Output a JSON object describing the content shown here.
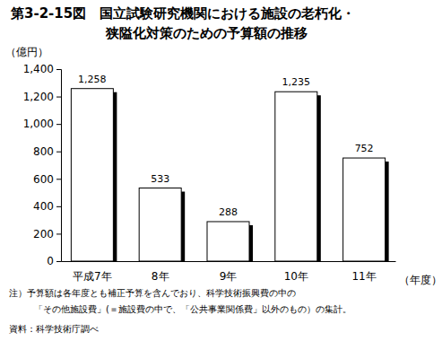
{
  "chart_data": {
    "type": "bar",
    "title": "第3-2-15図　国立試験研究機関における施設の老朽化・狭隘化対策のための予算額の推移",
    "ylabel": "（億円）",
    "xlabel": "（年度）",
    "categories": [
      "平成7年",
      "8年",
      "9年",
      "10年",
      "11年"
    ],
    "values": [
      1258,
      533,
      288,
      1235,
      752
    ],
    "value_labels": [
      "1,258",
      "533",
      "288",
      "1,235",
      "752"
    ],
    "color": "#ffffff",
    "data_labels": true,
    "grid": false,
    "ylim": [
      0,
      1400
    ],
    "yticks": [
      0,
      200,
      400,
      600,
      800,
      {
        "value": 1000,
        "label": "1,000"
      },
      {
        "value": 1200,
        "label": "1,200"
      },
      {
        "value": 1400,
        "label": "1,400"
      }
    ],
    "annotations": [
      "注）予算額は各年度とも補正予算を含んでおり、科学技術振興費の中の",
      "「その他施設費」(＝施設費の中で、「公共事業関係費」以外のもの）の集計。",
      "資料：科学技術庁調べ"
    ]
  }
}
